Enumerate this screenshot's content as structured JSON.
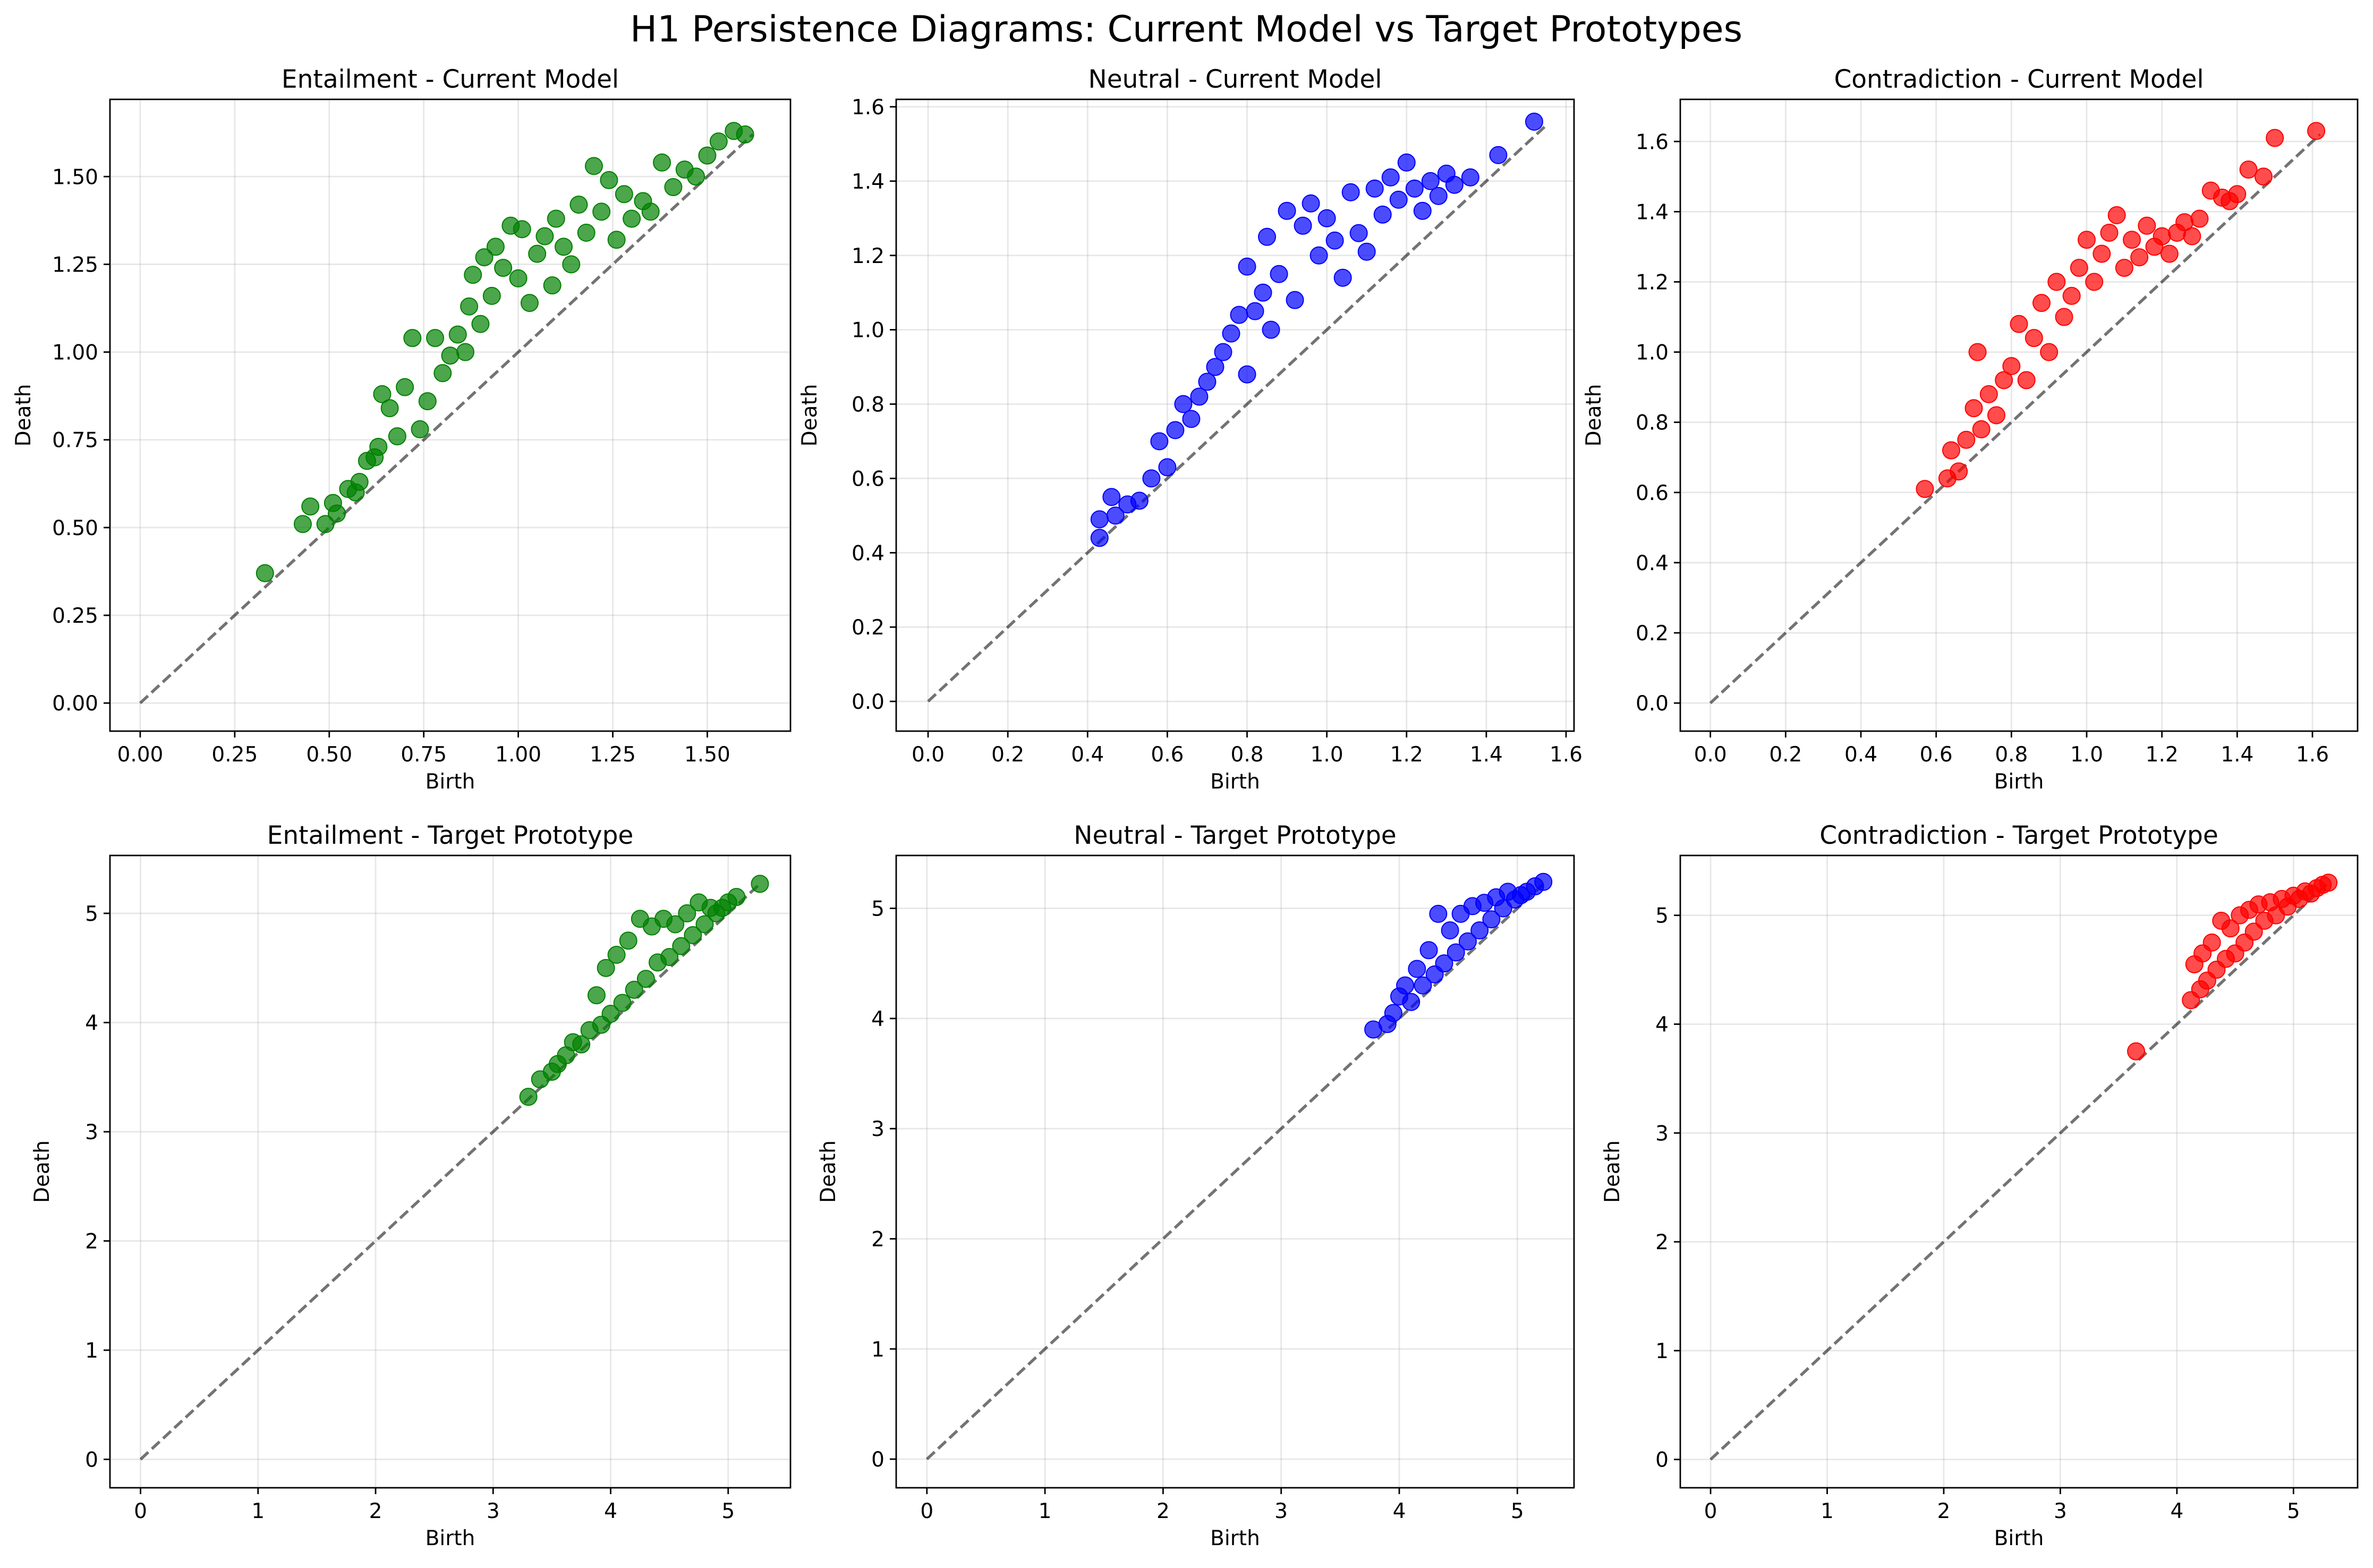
{
  "figure": {
    "title": "H1 Persistence Diagrams: Current Model vs Target Prototypes"
  },
  "chart_data": [
    {
      "type": "scatter",
      "title": "Entailment - Current Model",
      "xlabel": "Birth",
      "ylabel": "Death",
      "xlim": [
        -0.08,
        1.72
      ],
      "ylim": [
        -0.08,
        1.72
      ],
      "xticks": [
        "0.00",
        "0.25",
        "0.50",
        "0.75",
        "1.00",
        "1.25",
        "1.50"
      ],
      "yticks": [
        "0.00",
        "0.25",
        "0.50",
        "0.75",
        "1.00",
        "1.25",
        "1.50"
      ],
      "tick_values": [
        0,
        0.25,
        0.5,
        0.75,
        1.0,
        1.25,
        1.5
      ],
      "diagonal": [
        0,
        1.62
      ],
      "color": "#008000",
      "grid": true,
      "points": [
        [
          0.33,
          0.37
        ],
        [
          0.43,
          0.51
        ],
        [
          0.45,
          0.56
        ],
        [
          0.49,
          0.51
        ],
        [
          0.51,
          0.57
        ],
        [
          0.52,
          0.54
        ],
        [
          0.55,
          0.61
        ],
        [
          0.57,
          0.6
        ],
        [
          0.58,
          0.63
        ],
        [
          0.6,
          0.69
        ],
        [
          0.62,
          0.7
        ],
        [
          0.63,
          0.73
        ],
        [
          0.64,
          0.88
        ],
        [
          0.66,
          0.84
        ],
        [
          0.68,
          0.76
        ],
        [
          0.7,
          0.9
        ],
        [
          0.72,
          1.04
        ],
        [
          0.74,
          0.78
        ],
        [
          0.76,
          0.86
        ],
        [
          0.78,
          1.04
        ],
        [
          0.8,
          0.94
        ],
        [
          0.82,
          0.99
        ],
        [
          0.84,
          1.05
        ],
        [
          0.86,
          1.0
        ],
        [
          0.87,
          1.13
        ],
        [
          0.88,
          1.22
        ],
        [
          0.9,
          1.08
        ],
        [
          0.91,
          1.27
        ],
        [
          0.93,
          1.16
        ],
        [
          0.94,
          1.3
        ],
        [
          0.96,
          1.24
        ],
        [
          0.98,
          1.36
        ],
        [
          1.0,
          1.21
        ],
        [
          1.01,
          1.35
        ],
        [
          1.03,
          1.14
        ],
        [
          1.05,
          1.28
        ],
        [
          1.07,
          1.33
        ],
        [
          1.09,
          1.19
        ],
        [
          1.1,
          1.38
        ],
        [
          1.12,
          1.3
        ],
        [
          1.14,
          1.25
        ],
        [
          1.16,
          1.42
        ],
        [
          1.18,
          1.34
        ],
        [
          1.2,
          1.53
        ],
        [
          1.22,
          1.4
        ],
        [
          1.24,
          1.49
        ],
        [
          1.26,
          1.32
        ],
        [
          1.28,
          1.45
        ],
        [
          1.3,
          1.38
        ],
        [
          1.33,
          1.43
        ],
        [
          1.35,
          1.4
        ],
        [
          1.38,
          1.54
        ],
        [
          1.41,
          1.47
        ],
        [
          1.44,
          1.52
        ],
        [
          1.47,
          1.5
        ],
        [
          1.5,
          1.56
        ],
        [
          1.53,
          1.6
        ],
        [
          1.57,
          1.63
        ],
        [
          1.6,
          1.62
        ]
      ]
    },
    {
      "type": "scatter",
      "title": "Neutral - Current Model",
      "xlabel": "Birth",
      "ylabel": "Death",
      "xlim": [
        -0.08,
        1.62
      ],
      "ylim": [
        -0.08,
        1.62
      ],
      "xticks": [
        "0.0",
        "0.2",
        "0.4",
        "0.6",
        "0.8",
        "1.0",
        "1.2",
        "1.4",
        "1.6"
      ],
      "yticks": [
        "0.0",
        "0.2",
        "0.4",
        "0.6",
        "0.8",
        "1.0",
        "1.2",
        "1.4",
        "1.6"
      ],
      "tick_values": [
        0,
        0.2,
        0.4,
        0.6,
        0.8,
        1.0,
        1.2,
        1.4,
        1.6
      ],
      "diagonal": [
        0,
        1.55
      ],
      "color": "#0000ff",
      "grid": true,
      "points": [
        [
          0.43,
          0.44
        ],
        [
          0.43,
          0.49
        ],
        [
          0.46,
          0.55
        ],
        [
          0.47,
          0.5
        ],
        [
          0.5,
          0.53
        ],
        [
          0.53,
          0.54
        ],
        [
          0.56,
          0.6
        ],
        [
          0.58,
          0.7
        ],
        [
          0.6,
          0.63
        ],
        [
          0.62,
          0.73
        ],
        [
          0.64,
          0.8
        ],
        [
          0.66,
          0.76
        ],
        [
          0.68,
          0.82
        ],
        [
          0.7,
          0.86
        ],
        [
          0.72,
          0.9
        ],
        [
          0.74,
          0.94
        ],
        [
          0.76,
          0.99
        ],
        [
          0.78,
          1.04
        ],
        [
          0.8,
          1.17
        ],
        [
          0.8,
          0.88
        ],
        [
          0.82,
          1.05
        ],
        [
          0.84,
          1.1
        ],
        [
          0.85,
          1.25
        ],
        [
          0.86,
          1.0
        ],
        [
          0.88,
          1.15
        ],
        [
          0.9,
          1.32
        ],
        [
          0.92,
          1.08
        ],
        [
          0.94,
          1.28
        ],
        [
          0.96,
          1.34
        ],
        [
          0.98,
          1.2
        ],
        [
          1.0,
          1.3
        ],
        [
          1.02,
          1.24
        ],
        [
          1.04,
          1.14
        ],
        [
          1.06,
          1.37
        ],
        [
          1.08,
          1.26
        ],
        [
          1.1,
          1.21
        ],
        [
          1.12,
          1.38
        ],
        [
          1.14,
          1.31
        ],
        [
          1.16,
          1.41
        ],
        [
          1.18,
          1.35
        ],
        [
          1.2,
          1.45
        ],
        [
          1.22,
          1.38
        ],
        [
          1.24,
          1.32
        ],
        [
          1.26,
          1.4
        ],
        [
          1.28,
          1.36
        ],
        [
          1.3,
          1.42
        ],
        [
          1.32,
          1.39
        ],
        [
          1.36,
          1.41
        ],
        [
          1.43,
          1.47
        ],
        [
          1.52,
          1.56
        ]
      ]
    },
    {
      "type": "scatter",
      "title": "Contradiction - Current Model",
      "xlabel": "Birth",
      "ylabel": "Death",
      "xlim": [
        -0.08,
        1.72
      ],
      "ylim": [
        -0.08,
        1.72
      ],
      "xticks": [
        "0.0",
        "0.2",
        "0.4",
        "0.6",
        "0.8",
        "1.0",
        "1.2",
        "1.4",
        "1.6"
      ],
      "yticks": [
        "0.0",
        "0.2",
        "0.4",
        "0.6",
        "0.8",
        "1.0",
        "1.2",
        "1.4",
        "1.6"
      ],
      "tick_values": [
        0,
        0.2,
        0.4,
        0.6,
        0.8,
        1.0,
        1.2,
        1.4,
        1.6
      ],
      "diagonal": [
        0,
        1.62
      ],
      "color": "#ff0000",
      "grid": true,
      "points": [
        [
          0.57,
          0.61
        ],
        [
          0.63,
          0.64
        ],
        [
          0.64,
          0.72
        ],
        [
          0.66,
          0.66
        ],
        [
          0.68,
          0.75
        ],
        [
          0.7,
          0.84
        ],
        [
          0.71,
          1.0
        ],
        [
          0.72,
          0.78
        ],
        [
          0.74,
          0.88
        ],
        [
          0.76,
          0.82
        ],
        [
          0.78,
          0.92
        ],
        [
          0.8,
          0.96
        ],
        [
          0.82,
          1.08
        ],
        [
          0.84,
          0.92
        ],
        [
          0.86,
          1.04
        ],
        [
          0.88,
          1.14
        ],
        [
          0.9,
          1.0
        ],
        [
          0.92,
          1.2
        ],
        [
          0.94,
          1.1
        ],
        [
          0.96,
          1.16
        ],
        [
          0.98,
          1.24
        ],
        [
          1.0,
          1.32
        ],
        [
          1.02,
          1.2
        ],
        [
          1.04,
          1.28
        ],
        [
          1.06,
          1.34
        ],
        [
          1.08,
          1.39
        ],
        [
          1.1,
          1.24
        ],
        [
          1.12,
          1.32
        ],
        [
          1.14,
          1.27
        ],
        [
          1.16,
          1.36
        ],
        [
          1.18,
          1.3
        ],
        [
          1.2,
          1.33
        ],
        [
          1.22,
          1.28
        ],
        [
          1.24,
          1.34
        ],
        [
          1.26,
          1.37
        ],
        [
          1.28,
          1.33
        ],
        [
          1.3,
          1.38
        ],
        [
          1.33,
          1.46
        ],
        [
          1.36,
          1.44
        ],
        [
          1.38,
          1.43
        ],
        [
          1.4,
          1.45
        ],
        [
          1.43,
          1.52
        ],
        [
          1.47,
          1.5
        ],
        [
          1.5,
          1.61
        ],
        [
          1.61,
          1.63
        ]
      ]
    },
    {
      "type": "scatter",
      "title": "Entailment - Target Prototype",
      "xlabel": "Birth",
      "ylabel": "Death",
      "xlim": [
        -0.26,
        5.53
      ],
      "ylim": [
        -0.26,
        5.53
      ],
      "xticks": [
        "0",
        "1",
        "2",
        "3",
        "4",
        "5"
      ],
      "yticks": [
        "0",
        "1",
        "2",
        "3",
        "4",
        "5"
      ],
      "tick_values": [
        0,
        1,
        2,
        3,
        4,
        5
      ],
      "diagonal": [
        0,
        5.27
      ],
      "color": "#008000",
      "grid": true,
      "points": [
        [
          3.3,
          3.32
        ],
        [
          3.4,
          3.48
        ],
        [
          3.5,
          3.55
        ],
        [
          3.55,
          3.62
        ],
        [
          3.62,
          3.7
        ],
        [
          3.68,
          3.82
        ],
        [
          3.75,
          3.8
        ],
        [
          3.82,
          3.93
        ],
        [
          3.88,
          4.25
        ],
        [
          3.92,
          3.98
        ],
        [
          3.96,
          4.5
        ],
        [
          4.0,
          4.08
        ],
        [
          4.05,
          4.62
        ],
        [
          4.1,
          4.18
        ],
        [
          4.15,
          4.75
        ],
        [
          4.2,
          4.3
        ],
        [
          4.25,
          4.95
        ],
        [
          4.3,
          4.4
        ],
        [
          4.35,
          4.88
        ],
        [
          4.4,
          4.55
        ],
        [
          4.45,
          4.95
        ],
        [
          4.5,
          4.6
        ],
        [
          4.55,
          4.9
        ],
        [
          4.6,
          4.7
        ],
        [
          4.65,
          5.0
        ],
        [
          4.7,
          4.8
        ],
        [
          4.75,
          5.1
        ],
        [
          4.8,
          4.9
        ],
        [
          4.85,
          5.05
        ],
        [
          4.9,
          5.0
        ],
        [
          4.95,
          5.05
        ],
        [
          5.0,
          5.1
        ],
        [
          5.07,
          5.15
        ],
        [
          5.27,
          5.27
        ]
      ]
    },
    {
      "type": "scatter",
      "title": "Neutral - Target Prototype",
      "xlabel": "Birth",
      "ylabel": "Death",
      "xlim": [
        -0.26,
        5.48
      ],
      "ylim": [
        -0.26,
        5.48
      ],
      "xticks": [
        "0",
        "1",
        "2",
        "3",
        "4",
        "5"
      ],
      "yticks": [
        "0",
        "1",
        "2",
        "3",
        "4",
        "5"
      ],
      "tick_values": [
        0,
        1,
        2,
        3,
        4,
        5
      ],
      "diagonal": [
        0,
        5.22
      ],
      "color": "#0000ff",
      "grid": true,
      "points": [
        [
          3.78,
          3.9
        ],
        [
          3.9,
          3.95
        ],
        [
          3.95,
          4.05
        ],
        [
          4.0,
          4.2
        ],
        [
          4.05,
          4.3
        ],
        [
          4.1,
          4.15
        ],
        [
          4.15,
          4.45
        ],
        [
          4.2,
          4.3
        ],
        [
          4.25,
          4.62
        ],
        [
          4.3,
          4.4
        ],
        [
          4.33,
          4.95
        ],
        [
          4.38,
          4.5
        ],
        [
          4.43,
          4.8
        ],
        [
          4.48,
          4.6
        ],
        [
          4.52,
          4.95
        ],
        [
          4.58,
          4.7
        ],
        [
          4.62,
          5.02
        ],
        [
          4.68,
          4.8
        ],
        [
          4.72,
          5.05
        ],
        [
          4.78,
          4.9
        ],
        [
          4.82,
          5.1
        ],
        [
          4.88,
          5.0
        ],
        [
          4.92,
          5.15
        ],
        [
          4.98,
          5.08
        ],
        [
          5.03,
          5.12
        ],
        [
          5.08,
          5.15
        ],
        [
          5.15,
          5.2
        ],
        [
          5.22,
          5.24
        ]
      ]
    },
    {
      "type": "scatter",
      "title": "Contradiction - Target Prototype",
      "xlabel": "Birth",
      "ylabel": "Death",
      "xlim": [
        -0.26,
        5.55
      ],
      "ylim": [
        -0.26,
        5.55
      ],
      "xticks": [
        "0",
        "1",
        "2",
        "3",
        "4",
        "5"
      ],
      "yticks": [
        "0",
        "1",
        "2",
        "3",
        "4",
        "5"
      ],
      "tick_values": [
        0,
        1,
        2,
        3,
        4,
        5
      ],
      "diagonal": [
        0,
        5.3
      ],
      "color": "#ff0000",
      "grid": true,
      "points": [
        [
          3.65,
          3.75
        ],
        [
          4.12,
          4.22
        ],
        [
          4.15,
          4.55
        ],
        [
          4.2,
          4.32
        ],
        [
          4.22,
          4.65
        ],
        [
          4.26,
          4.4
        ],
        [
          4.3,
          4.75
        ],
        [
          4.34,
          4.5
        ],
        [
          4.38,
          4.95
        ],
        [
          4.42,
          4.6
        ],
        [
          4.46,
          4.88
        ],
        [
          4.5,
          4.65
        ],
        [
          4.54,
          5.0
        ],
        [
          4.58,
          4.75
        ],
        [
          4.62,
          5.05
        ],
        [
          4.66,
          4.85
        ],
        [
          4.7,
          5.1
        ],
        [
          4.75,
          4.95
        ],
        [
          4.8,
          5.12
        ],
        [
          4.85,
          5.0
        ],
        [
          4.9,
          5.15
        ],
        [
          4.95,
          5.08
        ],
        [
          5.0,
          5.18
        ],
        [
          5.05,
          5.15
        ],
        [
          5.1,
          5.22
        ],
        [
          5.15,
          5.2
        ],
        [
          5.2,
          5.25
        ],
        [
          5.25,
          5.28
        ],
        [
          5.3,
          5.3
        ]
      ]
    }
  ]
}
